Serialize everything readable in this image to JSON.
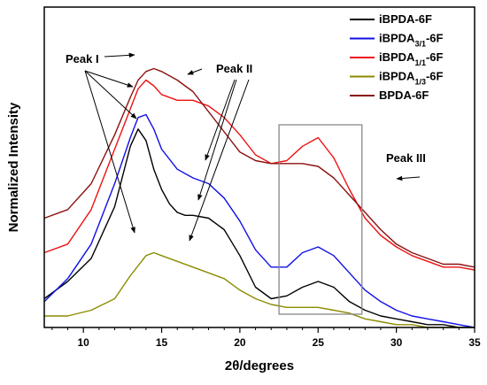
{
  "chart_data": {
    "type": "line",
    "xlabel": "2θ/degrees",
    "ylabel": "Normalized Intensity",
    "xlim": [
      7.5,
      35
    ],
    "ylim": [
      0,
      1
    ],
    "xticks": [
      10,
      15,
      20,
      25,
      30,
      35
    ],
    "y_ticks_labeled": false,
    "grid": false,
    "legend_position": "top-right",
    "series": [
      {
        "name_parts": [
          {
            "text": "iBPDA-6F"
          }
        ],
        "color": "#000000",
        "x": [
          7.5,
          9,
          10.5,
          12,
          13,
          13.5,
          14,
          14.5,
          15,
          15.5,
          16,
          16.5,
          17,
          18,
          19,
          20,
          21,
          22,
          23,
          24,
          25,
          26,
          27,
          28,
          29,
          30,
          31,
          32,
          33,
          34,
          35
        ],
        "y": [
          0.1,
          0.16,
          0.24,
          0.42,
          0.63,
          0.69,
          0.65,
          0.55,
          0.48,
          0.43,
          0.4,
          0.39,
          0.39,
          0.38,
          0.34,
          0.25,
          0.14,
          0.1,
          0.11,
          0.14,
          0.16,
          0.14,
          0.09,
          0.06,
          0.04,
          0.03,
          0.02,
          0.01,
          0.01,
          0.0,
          0.0
        ]
      },
      {
        "name_parts": [
          {
            "text": "iBPDA"
          },
          {
            "text": "3/1",
            "sub": true
          },
          {
            "text": "-6F"
          }
        ],
        "color": "#1010e6",
        "x": [
          7.5,
          9,
          10.5,
          12,
          13,
          13.5,
          14,
          14.5,
          15,
          16,
          17,
          18,
          19,
          20,
          21,
          22,
          23,
          24,
          25,
          26,
          27,
          28,
          29,
          30,
          31,
          32,
          33,
          34,
          35
        ],
        "y": [
          0.09,
          0.17,
          0.29,
          0.5,
          0.66,
          0.73,
          0.74,
          0.69,
          0.62,
          0.55,
          0.52,
          0.5,
          0.45,
          0.37,
          0.27,
          0.21,
          0.21,
          0.26,
          0.28,
          0.25,
          0.19,
          0.13,
          0.09,
          0.06,
          0.04,
          0.03,
          0.02,
          0.01,
          0.0
        ]
      },
      {
        "name_parts": [
          {
            "text": "iBPDA"
          },
          {
            "text": "1/1",
            "sub": true
          },
          {
            "text": "-6F"
          }
        ],
        "color": "#ee1111",
        "x": [
          7.5,
          9,
          10.5,
          12,
          13,
          13.5,
          14,
          14.5,
          15,
          16,
          17,
          18,
          19,
          20,
          21,
          22,
          23,
          24,
          25,
          26,
          27,
          28,
          29,
          30,
          31,
          32,
          33,
          34,
          35
        ],
        "y": [
          0.26,
          0.29,
          0.41,
          0.62,
          0.76,
          0.83,
          0.86,
          0.84,
          0.81,
          0.79,
          0.79,
          0.77,
          0.73,
          0.67,
          0.6,
          0.57,
          0.58,
          0.63,
          0.66,
          0.59,
          0.48,
          0.38,
          0.32,
          0.28,
          0.25,
          0.23,
          0.21,
          0.21,
          0.2
        ]
      },
      {
        "name_parts": [
          {
            "text": "iBPDA"
          },
          {
            "text": "1/3",
            "sub": true
          },
          {
            "text": "-6F"
          }
        ],
        "color": "#8b8b00",
        "x": [
          7.5,
          9,
          10.5,
          12,
          13,
          14,
          14.5,
          15,
          16,
          17,
          18,
          19,
          20,
          21,
          22,
          23,
          24,
          25,
          26,
          27,
          28,
          29,
          30,
          31,
          32,
          33,
          34,
          35
        ],
        "y": [
          0.04,
          0.04,
          0.06,
          0.1,
          0.18,
          0.25,
          0.26,
          0.25,
          0.23,
          0.21,
          0.19,
          0.17,
          0.13,
          0.1,
          0.08,
          0.07,
          0.07,
          0.07,
          0.06,
          0.05,
          0.03,
          0.02,
          0.01,
          0.01,
          0.0,
          0.0,
          0.0,
          0.0
        ]
      },
      {
        "name_parts": [
          {
            "text": "BPDA-6F"
          }
        ],
        "color": "#8b1010",
        "x": [
          7.5,
          9,
          10.5,
          12,
          13,
          13.5,
          14,
          14.5,
          15,
          16,
          17,
          18,
          19,
          20,
          21,
          22,
          23,
          24,
          25,
          26,
          27,
          28,
          29,
          30,
          31,
          32,
          33,
          34,
          35
        ],
        "y": [
          0.38,
          0.41,
          0.5,
          0.67,
          0.8,
          0.86,
          0.89,
          0.9,
          0.89,
          0.86,
          0.82,
          0.75,
          0.68,
          0.61,
          0.58,
          0.57,
          0.57,
          0.57,
          0.56,
          0.52,
          0.46,
          0.4,
          0.34,
          0.29,
          0.26,
          0.24,
          0.22,
          0.22,
          0.21
        ]
      }
    ],
    "annotations": [
      {
        "id": "peak-i",
        "text": "Peak I"
      },
      {
        "id": "peak-ii",
        "text": "Peak II"
      },
      {
        "id": "peak-iii",
        "text": "Peak III"
      }
    ],
    "highlight_box_x": [
      22.5,
      27.8
    ]
  }
}
